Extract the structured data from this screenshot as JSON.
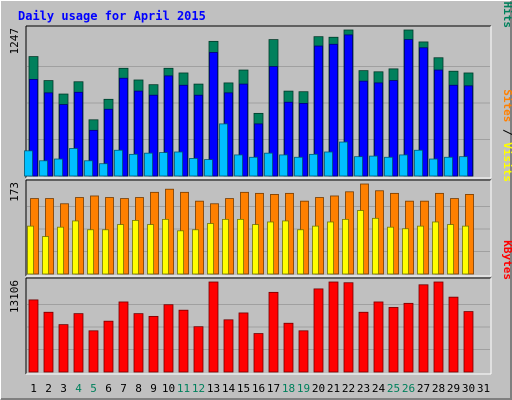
{
  "chart_data": {
    "type": "bar",
    "title": "Daily usage for April 2015",
    "colors": {
      "background": "#c0c0c0",
      "title": "#0000ff",
      "hits": "#00805c",
      "files": "#0000ff",
      "pages": "#00c0ff",
      "visits": "#ff8000",
      "sites": "#ffff00",
      "kbytes": "#ff0000"
    },
    "categories": [
      "1",
      "2",
      "3",
      "4",
      "5",
      "6",
      "7",
      "8",
      "9",
      "10",
      "11",
      "12",
      "13",
      "14",
      "15",
      "16",
      "17",
      "18",
      "19",
      "20",
      "21",
      "22",
      "23",
      "24",
      "25",
      "26",
      "27",
      "28",
      "29",
      "30",
      "31"
    ],
    "weekend_days": [
      "4",
      "5",
      "11",
      "12",
      "18",
      "19",
      "25",
      "26"
    ],
    "day_label_colors": {
      "weekday": "#000000",
      "weekend": "#00805c"
    },
    "panels": [
      {
        "id": "hits-files-pages",
        "ymax_label": "1247",
        "ymax": 1247,
        "side_label_parts": [
          {
            "text": "Pages",
            "color": "#00c0ff"
          },
          {
            "text": " / ",
            "color": "#000000"
          },
          {
            "text": "Files",
            "color": "#0000ff"
          },
          {
            "text": " / ",
            "color": "#000000"
          },
          {
            "text": "Hits",
            "color": "#00805c"
          }
        ],
        "series": [
          {
            "name": "Hits",
            "color": "#00805c",
            "values": [
              1020,
              815,
              700,
              805,
              480,
              655,
              920,
              820,
              780,
              920,
              880,
              785,
              1150,
              795,
              905,
              535,
              1165,
              725,
              720,
              1190,
              1185,
              1247,
              900,
              890,
              915,
              1247,
              1145,
              1010,
              895,
              880,
              0
            ]
          },
          {
            "name": "Files",
            "color": "#0000ff",
            "values": [
              825,
              710,
              610,
              715,
              390,
              570,
              835,
              725,
              690,
              855,
              775,
              690,
              1055,
              710,
              785,
              445,
              935,
              630,
              620,
              1110,
              1125,
              1205,
              810,
              795,
              815,
              1165,
              1095,
              905,
              775,
              770,
              0
            ]
          },
          {
            "name": "Pages",
            "color": "#00c0ff",
            "values": [
              215,
              130,
              145,
              235,
              130,
              105,
              220,
              185,
              195,
              200,
              205,
              150,
              140,
              445,
              180,
              160,
              195,
              180,
              160,
              185,
              205,
              290,
              165,
              170,
              160,
              180,
              220,
              145,
              160,
              165,
              0
            ]
          }
        ]
      },
      {
        "id": "visits-sites",
        "ymax_label": "173",
        "ymax": 173,
        "side_label_parts": [
          {
            "text": "Sites",
            "color": "#ff8000"
          },
          {
            "text": " / ",
            "color": "#000000"
          },
          {
            "text": "Visits",
            "color": "#ffff00"
          }
        ],
        "series": [
          {
            "name": "Visits",
            "color": "#ff8000",
            "values": [
              145,
              145,
              135,
              147,
              150,
              147,
              145,
              147,
              157,
              163,
              157,
              140,
              135,
              145,
              157,
              155,
              153,
              155,
              140,
              147,
              150,
              158,
              173,
              160,
              155,
              140,
              140,
              155,
              145,
              153,
              0
            ]
          },
          {
            "name": "Sites",
            "color": "#ffff00",
            "values": [
              92,
              72,
              90,
              102,
              85,
              85,
              95,
              103,
              95,
              105,
              83,
              85,
              97,
              105,
              105,
              95,
              100,
              102,
              85,
              92,
              100,
              105,
              122,
              107,
              90,
              87,
              92,
              100,
              95,
              92,
              0
            ]
          }
        ]
      },
      {
        "id": "kbytes",
        "ymax_label": "13106",
        "ymax": 13106,
        "side_label_parts": [
          {
            "text": "KBytes",
            "color": "#ff0000"
          }
        ],
        "series": [
          {
            "name": "KBytes",
            "color": "#ff0000",
            "values": [
              10500,
              8700,
              6900,
              8500,
              6000,
              7400,
              10200,
              8500,
              8100,
              9800,
              9000,
              6600,
              13106,
              7600,
              8600,
              5600,
              11600,
              7100,
              6000,
              12100,
              13106,
              13000,
              8700,
              10200,
              9400,
              10000,
              12700,
              13106,
              10900,
              8800,
              0
            ]
          }
        ]
      }
    ]
  }
}
